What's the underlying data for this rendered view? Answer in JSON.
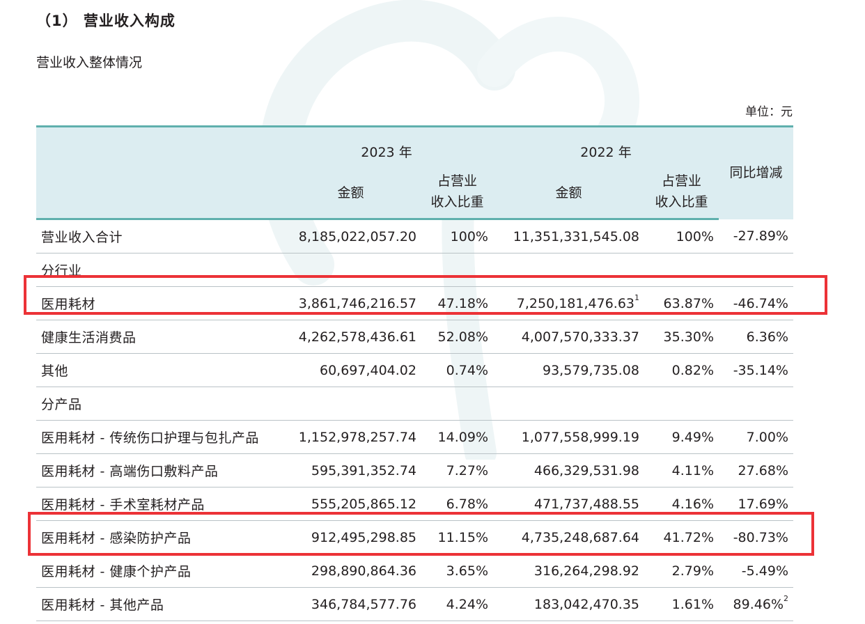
{
  "section_title": "（1） 营业收入构成",
  "subtitle": "营业收入整体情况",
  "unit": "单位：元",
  "header": {
    "year_2023": "2023 年",
    "year_2022": "2022 年",
    "amount_2023": "金额",
    "share_2023_line1": "占营业",
    "share_2023_line2": "收入比重",
    "amount_2022": "金额",
    "share_2022_line1": "占营业",
    "share_2022_line2": "收入比重",
    "yoy": "同比增减"
  },
  "rows": [
    {
      "label": "营业收入合计",
      "amt2023": "8,185,022,057.20",
      "pct2023": "100%",
      "amt2022": "11,351,331,545.08",
      "pct2022": "100%",
      "yoy": "-27.89%"
    },
    {
      "label": "分行业",
      "amt2023": "",
      "pct2023": "",
      "amt2022": "",
      "pct2022": "",
      "yoy": ""
    },
    {
      "label": "医用耗材",
      "amt2023": "3,861,746,216.57",
      "pct2023": "47.18%",
      "amt2022": "7,250,181,476.63",
      "amt2022_note": "1",
      "pct2022": "63.87%",
      "yoy": "-46.74%"
    },
    {
      "label": "健康生活消费品",
      "amt2023": "4,262,578,436.61",
      "pct2023": "52.08%",
      "amt2022": "4,007,570,333.37",
      "pct2022": "35.30%",
      "yoy": "6.36%"
    },
    {
      "label": "其他",
      "amt2023": "60,697,404.02",
      "pct2023": "0.74%",
      "amt2022": "93,579,735.08",
      "pct2022": "0.82%",
      "yoy": "-35.14%"
    },
    {
      "label": "分产品",
      "amt2023": "",
      "pct2023": "",
      "amt2022": "",
      "pct2022": "",
      "yoy": ""
    },
    {
      "label": "医用耗材 - 传统伤口护理与包扎产品",
      "amt2023": "1,152,978,257.74",
      "pct2023": "14.09%",
      "amt2022": "1,077,558,999.19",
      "pct2022": "9.49%",
      "yoy": "7.00%"
    },
    {
      "label": "医用耗材 - 高端伤口敷料产品",
      "amt2023": "595,391,352.74",
      "pct2023": "7.27%",
      "amt2022": "466,329,531.98",
      "pct2022": "4.11%",
      "yoy": "27.68%"
    },
    {
      "label": "医用耗材 - 手术室耗材产品",
      "amt2023": "555,205,865.12",
      "pct2023": "6.78%",
      "amt2022": "471,737,488.55",
      "pct2022": "4.16%",
      "yoy": "17.69%"
    },
    {
      "label": "医用耗材 - 感染防护产品",
      "amt2023": "912,495,298.85",
      "pct2023": "11.15%",
      "amt2022": "4,735,248,687.64",
      "pct2022": "41.72%",
      "yoy": "-80.73%"
    },
    {
      "label": "医用耗材 - 健康个护产品",
      "amt2023": "298,890,864.36",
      "pct2023": "3.65%",
      "amt2022": "316,264,298.92",
      "pct2022": "2.79%",
      "yoy": "-5.49%"
    },
    {
      "label": "医用耗材 - 其他产品",
      "amt2023": "346,784,577.76",
      "pct2023": "4.24%",
      "amt2022": "183,042,470.35",
      "pct2022": "1.61%",
      "yoy": "89.46%",
      "yoy_note": "2"
    }
  ],
  "colors": {
    "header_bg": "#dcedf1",
    "header_rule": "#5fb0ad",
    "highlight": "#ec3237",
    "text": "#231f20"
  }
}
